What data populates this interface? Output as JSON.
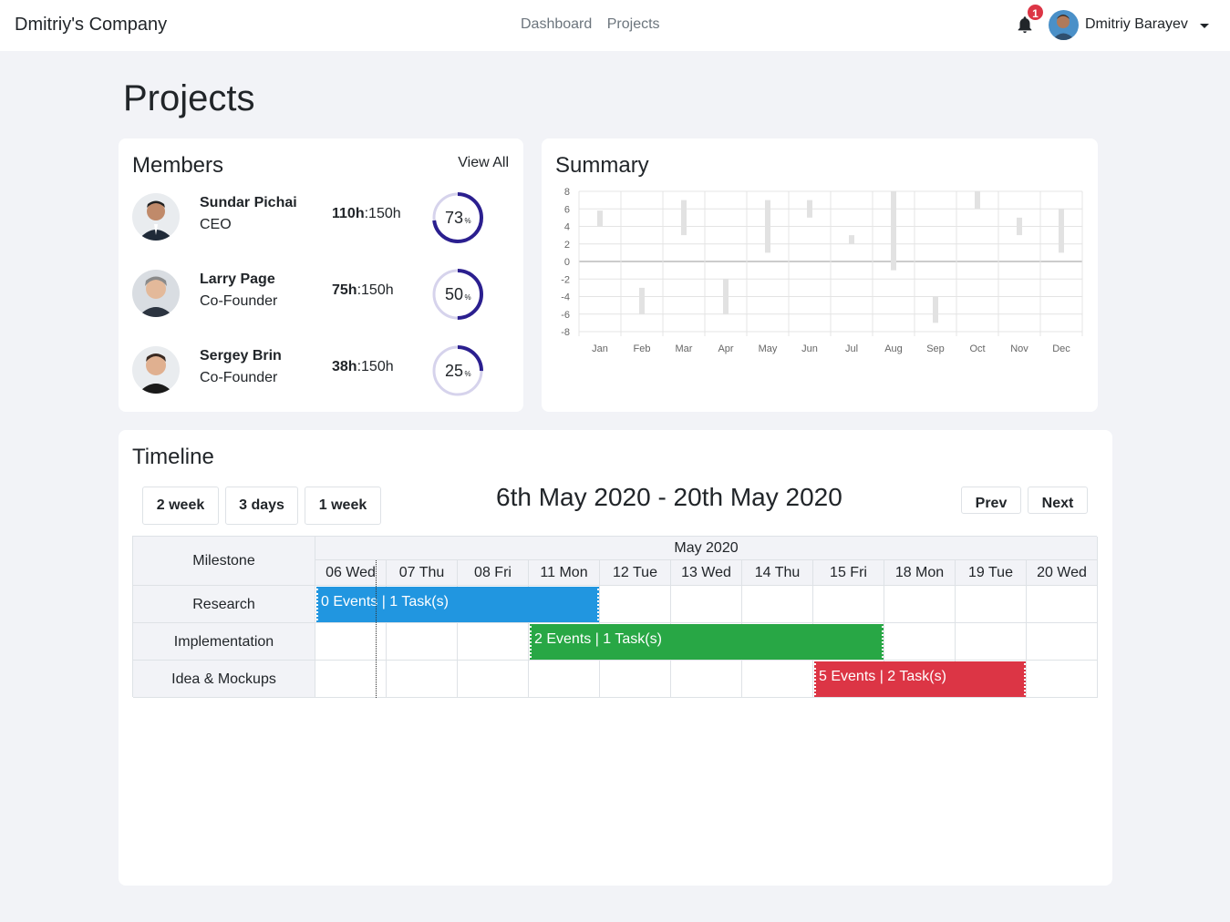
{
  "navbar": {
    "brand": "Dmitriy's Company",
    "links": [
      "Dashboard",
      "Projects"
    ],
    "notification_count": "1",
    "user_name": "Dmitriy Barayev"
  },
  "page": {
    "title": "Projects"
  },
  "members": {
    "title": "Members",
    "view_all": "View All",
    "items": [
      {
        "name": "Sundar Pichai",
        "role": "CEO",
        "hours_used": "110h",
        "hours_total": ":150h",
        "percent": "73",
        "pct_sign": "%"
      },
      {
        "name": "Larry Page",
        "role": "Co-Founder",
        "hours_used": "75h",
        "hours_total": ":150h",
        "percent": "50",
        "pct_sign": "%"
      },
      {
        "name": "Sergey Brin",
        "role": "Co-Founder",
        "hours_used": "38h",
        "hours_total": ":150h",
        "percent": "25",
        "pct_sign": "%"
      }
    ]
  },
  "summary": {
    "title": "Summary"
  },
  "chart_data": {
    "type": "bar",
    "title": "Summary",
    "categories": [
      "Jan",
      "Feb",
      "Mar",
      "Apr",
      "May",
      "Jun",
      "Jul",
      "Aug",
      "Sep",
      "Oct",
      "Nov",
      "Dec"
    ],
    "ranges": [
      [
        4,
        5.8
      ],
      [
        -6,
        -3
      ],
      [
        3,
        7
      ],
      [
        -6,
        -2
      ],
      [
        1,
        7
      ],
      [
        5,
        7
      ],
      [
        2,
        3
      ],
      [
        -1,
        8
      ],
      [
        -7,
        -4
      ],
      [
        6,
        8
      ],
      [
        3,
        5
      ],
      [
        1,
        6
      ]
    ],
    "ylim": [
      -8,
      8
    ],
    "yticks": [
      8,
      6,
      4,
      2,
      0,
      -2,
      -4,
      -6,
      -8
    ],
    "grid": true,
    "xlabel": "",
    "ylabel": ""
  },
  "timeline": {
    "title": "Timeline",
    "buttons": [
      "2 week",
      "3 days",
      "1 week"
    ],
    "range_title": "6th May 2020 - 20th May 2020",
    "prev": "Prev",
    "next": "Next",
    "milestone_header": "Milestone",
    "month_header": "May 2020",
    "days": [
      "06 Wed",
      "07 Thu",
      "08 Fri",
      "11 Mon",
      "12 Tue",
      "13 Wed",
      "14 Thu",
      "15 Fri",
      "18 Mon",
      "19 Tue",
      "20 Wed"
    ],
    "rows": [
      "Research",
      "Implementation",
      "Idea & Mockups"
    ],
    "bars": [
      {
        "label": "0 Events | 1 Task(s)",
        "row": 0,
        "start": 0,
        "end": 4,
        "color": "#2196e0"
      },
      {
        "label": "2 Events | 1 Task(s)",
        "row": 1,
        "start": 3,
        "end": 8,
        "color": "#28a745"
      },
      {
        "label": "5 Events | 2 Task(s)",
        "row": 2,
        "start": 7,
        "end": 10,
        "color": "#dc3545"
      }
    ]
  }
}
